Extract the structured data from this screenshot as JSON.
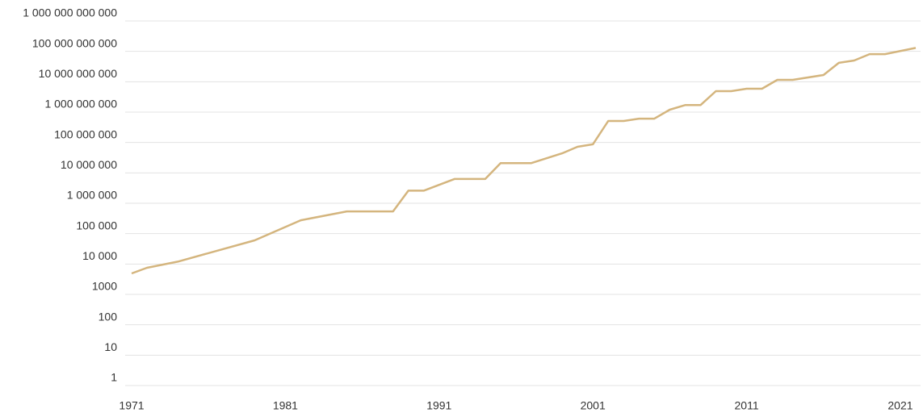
{
  "chart_data": {
    "type": "line",
    "yscale": "log",
    "grid": true,
    "color": "#d4b57e",
    "x": [
      1971,
      1972,
      1974,
      1979,
      1982,
      1985,
      1988,
      1989,
      1990,
      1992,
      1994,
      1995,
      1997,
      1999,
      2000,
      2001,
      2002,
      2003,
      2004,
      2005,
      2006,
      2007,
      2008,
      2009,
      2010,
      2011,
      2012,
      2013,
      2014,
      2016,
      2017,
      2018,
      2019,
      2020,
      2022
    ],
    "values": [
      4900,
      7500,
      12000,
      60000,
      275000,
      540000,
      540000,
      2600000,
      2600000,
      6300000,
      6300000,
      21000000,
      21000000,
      44000000,
      72000000,
      87000000,
      510000000,
      510000000,
      610000000,
      610000000,
      1200000000,
      1700000000,
      1700000000,
      4900000000,
      4900000000,
      5900000000,
      5900000000,
      11500000000,
      11500000000,
      16600000000,
      42000000000,
      50000000000,
      81000000000,
      81000000000,
      130000000000
    ],
    "xlim": [
      1971,
      2022
    ],
    "xticks": [
      1971,
      1981,
      1991,
      2001,
      2011,
      2021
    ],
    "ylim": [
      1,
      1000000000000
    ],
    "yticks": [
      1,
      10,
      100,
      1000,
      {
        "value": 10000,
        "label": "10 000"
      },
      {
        "value": 100000,
        "label": "100 000"
      },
      {
        "value": 1000000,
        "label": "1 000 000"
      },
      {
        "value": 10000000,
        "label": "10 000 000"
      },
      {
        "value": 100000000,
        "label": "100 000 000"
      },
      {
        "value": 1000000000,
        "label": "1 000 000 000"
      },
      {
        "value": 10000000000,
        "label": "10 000 000 000"
      },
      {
        "value": 100000000000,
        "label": "100 000 000 000"
      },
      {
        "value": 1000000000000,
        "label": "1 000 000 000 000"
      }
    ]
  }
}
